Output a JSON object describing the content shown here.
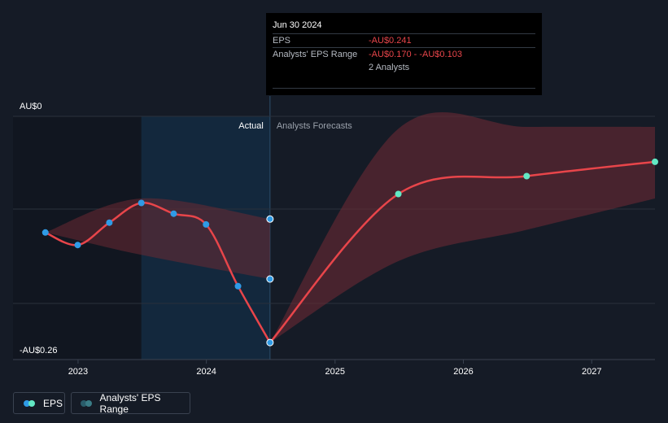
{
  "tooltip": {
    "date": "Jun 30 2024",
    "rows": [
      {
        "label": "EPS",
        "value": "-AU$0.241"
      },
      {
        "label": "Analysts' EPS Range",
        "value": "-AU$0.170 - -AU$0.103"
      },
      {
        "label": "",
        "value": "2 Analysts"
      }
    ]
  },
  "section_labels": {
    "actual": "Actual",
    "forecast": "Analysts Forecasts"
  },
  "legend": {
    "eps": "EPS",
    "range": "Analysts' EPS Range"
  },
  "colors": {
    "eps_line": "#e8454a",
    "actual_dot": "#2f9be6",
    "forecast_dot": "#62e8c4",
    "range_fill": "#6b2a33",
    "highlight": "#13283d"
  },
  "chart_data": {
    "type": "line",
    "y_axis": {
      "top_label": "AU$0",
      "bottom_label": "-AU$0.26",
      "range": [
        -0.26,
        0
      ]
    },
    "x_axis": {
      "tick_labels": [
        "2023",
        "2024",
        "2025",
        "2026",
        "2027"
      ],
      "range": [
        "2022-06-30",
        "2027-06-30"
      ]
    },
    "grid": true,
    "series": [
      {
        "name": "EPS",
        "kind": "actual",
        "points": [
          {
            "x": "2022-09-30",
            "y": -0.118
          },
          {
            "x": "2022-12-31",
            "y": -0.132
          },
          {
            "x": "2023-03-31",
            "y": -0.107
          },
          {
            "x": "2023-06-30",
            "y": -0.085
          },
          {
            "x": "2023-09-30",
            "y": -0.097
          },
          {
            "x": "2023-12-31",
            "y": -0.109
          },
          {
            "x": "2024-03-31",
            "y": -0.178
          },
          {
            "x": "2024-06-30",
            "y": -0.241
          }
        ]
      },
      {
        "name": "EPS",
        "kind": "forecast",
        "points": [
          {
            "x": "2024-06-30",
            "y": -0.241
          },
          {
            "x": "2025-06-30",
            "y": -0.075
          },
          {
            "x": "2026-06-30",
            "y": -0.055
          },
          {
            "x": "2027-06-30",
            "y": -0.039
          }
        ]
      }
    ],
    "range_band_actual": [
      {
        "x": "2022-09-30",
        "low": -0.118,
        "high": -0.118
      },
      {
        "x": "2023-06-30",
        "low": -0.143,
        "high": -0.08
      },
      {
        "x": "2024-06-30",
        "low": -0.17,
        "high": -0.103
      }
    ],
    "range_band_forecast": [
      {
        "x": "2024-06-30",
        "low": -0.241,
        "high": -0.241
      },
      {
        "x": "2025-06-30",
        "low": -0.15,
        "high": -0.002
      },
      {
        "x": "2026-06-30",
        "low": -0.115,
        "high": 0.0
      },
      {
        "x": "2027-06-30",
        "low": -0.08,
        "high": 0.0
      }
    ]
  }
}
